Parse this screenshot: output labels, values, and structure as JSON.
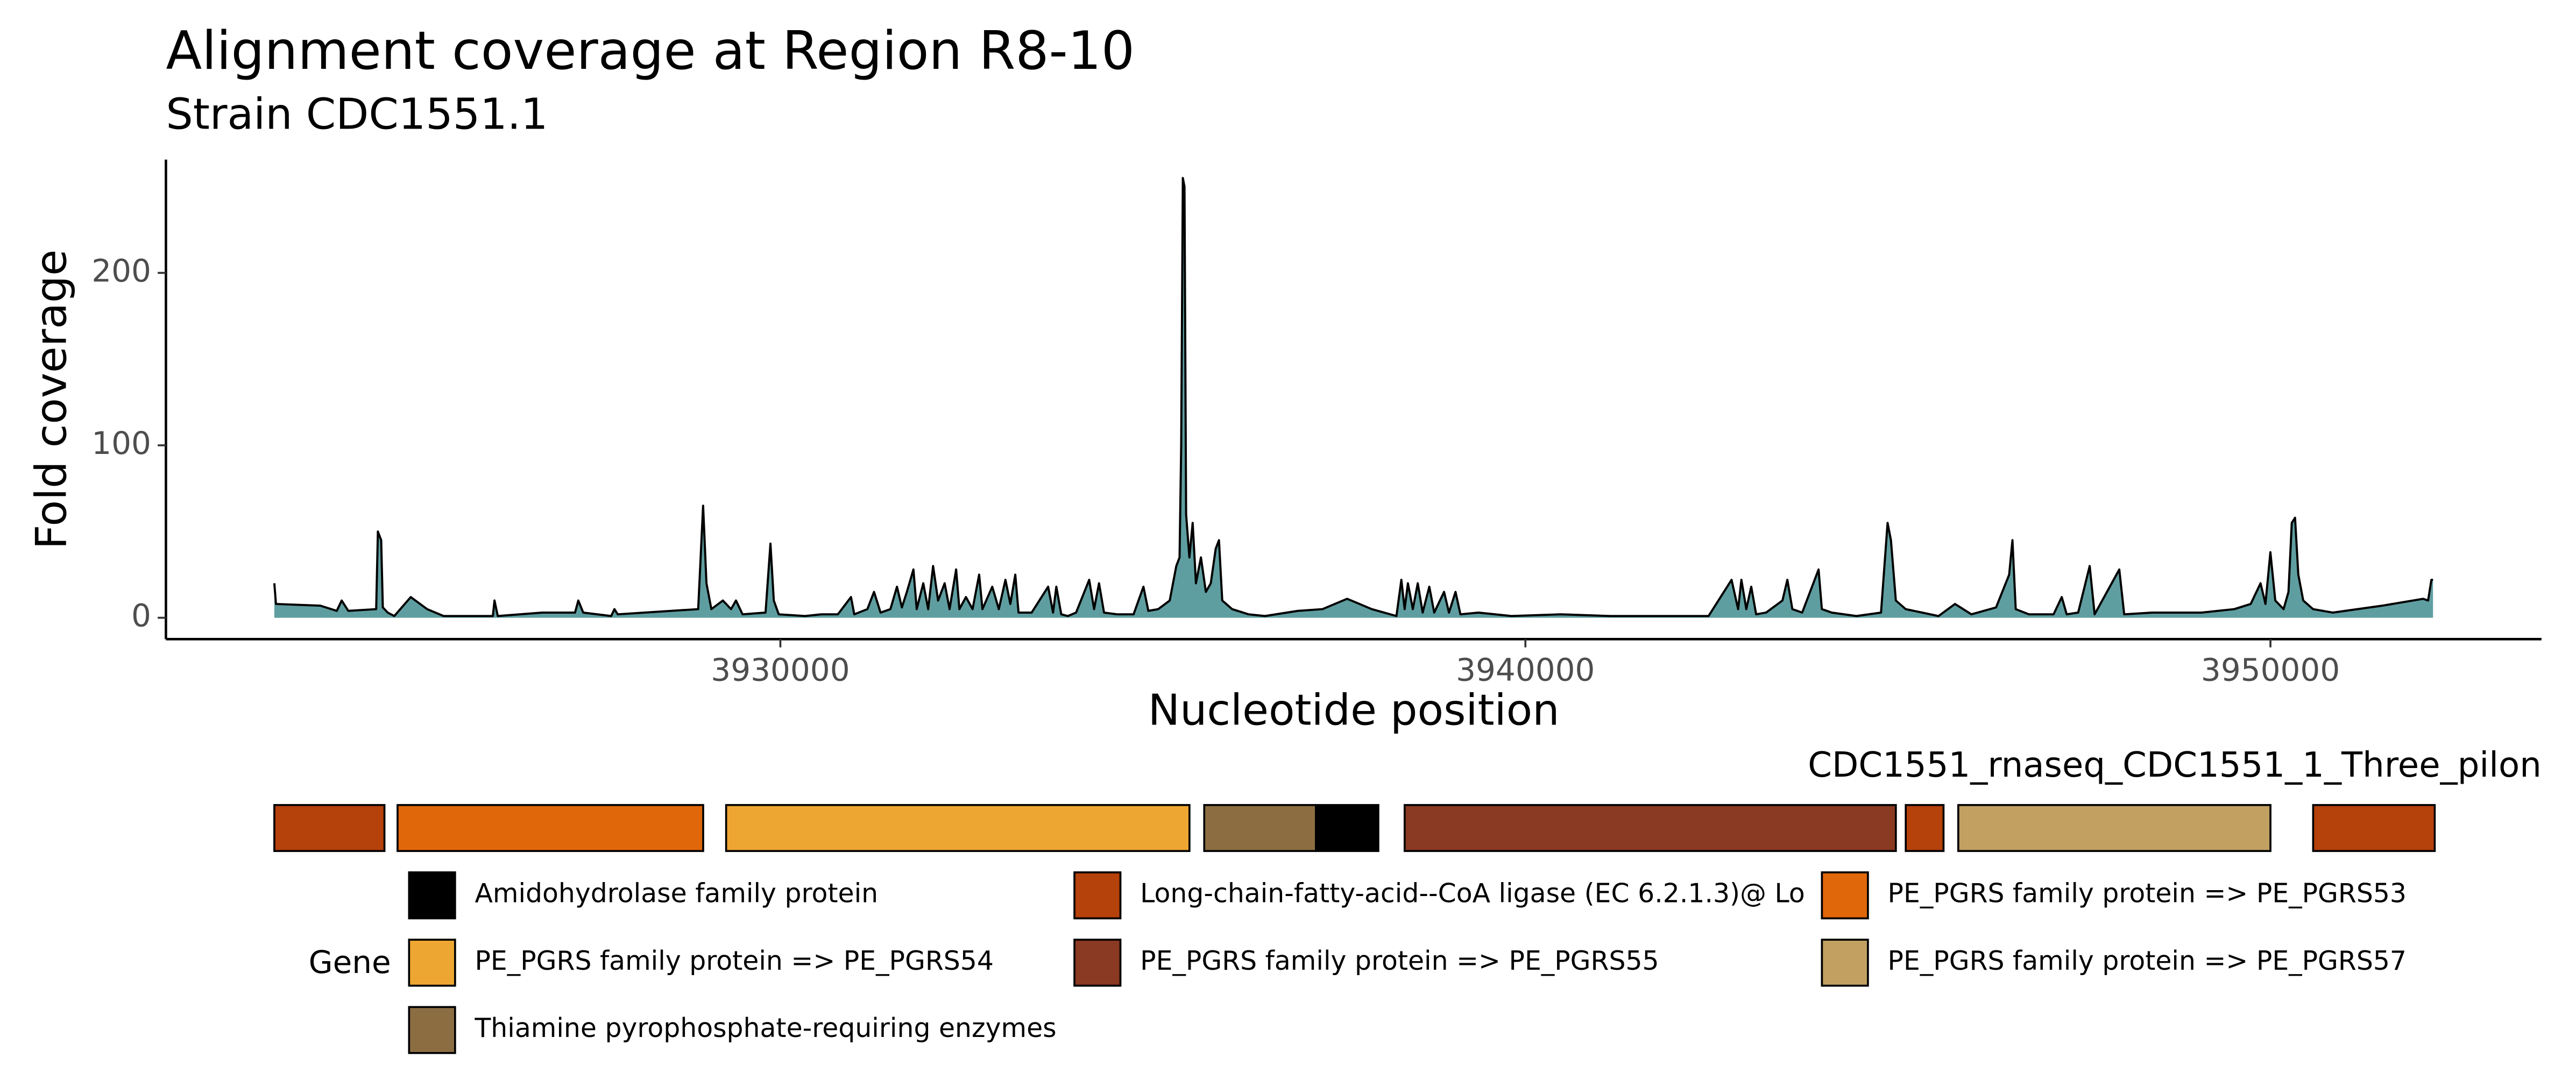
{
  "chart_data": {
    "type": "area",
    "title": "Alignment coverage at Region R8-10",
    "subtitle": "Strain CDC1551.1",
    "x_label": "Nucleotide position",
    "y_label": "Fold coverage",
    "color": "#5f9ea0",
    "line_color": "#000000",
    "grid": false,
    "xlim": [
      3921753,
      3953638
    ],
    "ylim": [
      -12.4,
      265.7
    ],
    "xticks": [
      3930000,
      3940000,
      3950000
    ],
    "yticks": [
      0,
      100,
      200
    ],
    "x": [
      3923208,
      3923230,
      3923826,
      3924046,
      3924112,
      3924201,
      3924575,
      3924598,
      3924642,
      3924664,
      3924730,
      3924818,
      3925039,
      3925259,
      3925480,
      3926141,
      3926163,
      3926207,
      3926803,
      3927244,
      3927288,
      3927354,
      3927729,
      3927773,
      3927817,
      3928897,
      3928963,
      3929008,
      3929074,
      3929228,
      3929338,
      3929404,
      3929493,
      3929801,
      3929867,
      3929912,
      3929978,
      3930331,
      3930551,
      3930772,
      3930948,
      3930992,
      3931168,
      3931257,
      3931345,
      3931477,
      3931565,
      3931631,
      3931698,
      3931786,
      3931830,
      3931918,
      3931984,
      3932050,
      3932117,
      3932205,
      3932271,
      3932359,
      3932403,
      3932491,
      3932580,
      3932668,
      3932712,
      3932844,
      3932932,
      3933021,
      3933087,
      3933153,
      3933197,
      3933373,
      3933594,
      3933660,
      3933704,
      3933770,
      3933859,
      3933969,
      3934145,
      3934211,
      3934277,
      3934344,
      3934520,
      3934741,
      3934873,
      3934939,
      3935071,
      3935226,
      3935314,
      3935358,
      3935380,
      3935402,
      3935424,
      3935446,
      3935490,
      3935534,
      3935578,
      3935645,
      3935711,
      3935777,
      3935843,
      3935887,
      3935931,
      3936064,
      3936284,
      3936505,
      3936946,
      3937276,
      3937607,
      3937938,
      3938269,
      3938335,
      3938379,
      3938423,
      3938489,
      3938555,
      3938621,
      3938710,
      3938776,
      3938908,
      3938974,
      3939062,
      3939128,
      3939371,
      3939812,
      3940474,
      3941135,
      3941576,
      3942458,
      3942767,
      3942855,
      3942899,
      3942965,
      3943031,
      3943097,
      3943230,
      3943450,
      3943516,
      3943583,
      3943715,
      3943935,
      3943979,
      3944112,
      3944443,
      3944773,
      3944861,
      3944906,
      3944972,
      3945104,
      3945325,
      3945545,
      3945766,
      3945986,
      3946317,
      3946493,
      3946537,
      3946581,
      3946758,
      3947089,
      3947199,
      3947265,
      3947419,
      3947574,
      3947640,
      3947971,
      3948037,
      3948412,
      3949073,
      3949514,
      3949735,
      3949867,
      3949933,
      3949999,
      3950065,
      3950176,
      3950242,
      3950286,
      3950330,
      3950374,
      3950440,
      3950572,
      3950837,
      3951499,
      3952050,
      3952116,
      3952160,
      3952182
    ],
    "values": [
      20,
      8,
      7,
      4,
      10,
      4,
      5,
      50,
      45,
      6,
      3,
      1,
      12,
      5,
      1,
      1,
      10,
      1,
      3,
      3,
      10,
      3,
      1,
      5,
      2,
      5,
      65,
      20,
      5,
      10,
      5,
      10,
      2,
      3,
      43,
      10,
      2,
      1,
      2,
      2,
      12,
      2,
      5,
      15,
      3,
      5,
      18,
      6,
      15,
      28,
      5,
      20,
      5,
      30,
      10,
      20,
      5,
      28,
      5,
      12,
      5,
      25,
      5,
      18,
      5,
      22,
      8,
      25,
      3,
      3,
      18,
      3,
      18,
      2,
      1,
      3,
      22,
      5,
      20,
      3,
      2,
      2,
      18,
      4,
      5,
      10,
      30,
      35,
      100,
      255,
      250,
      60,
      35,
      55,
      20,
      35,
      15,
      20,
      40,
      45,
      10,
      5,
      2,
      1,
      4,
      5,
      11,
      5,
      1,
      22,
      5,
      20,
      5,
      20,
      3,
      18,
      3,
      15,
      3,
      15,
      2,
      3,
      1,
      2,
      1,
      1,
      1,
      22,
      5,
      22,
      5,
      18,
      2,
      3,
      10,
      22,
      5,
      3,
      28,
      5,
      3,
      1,
      3,
      55,
      45,
      10,
      5,
      3,
      1,
      8,
      2,
      6,
      25,
      45,
      5,
      2,
      2,
      12,
      2,
      3,
      30,
      2,
      28,
      2,
      3,
      3,
      5,
      8,
      20,
      8,
      38,
      10,
      5,
      15,
      55,
      58,
      25,
      10,
      5,
      3,
      7,
      11,
      10,
      22,
      22
    ],
    "genes": {
      "title": "CDC1551_rnaseq_CDC1551_1_Three_pilon",
      "legend_title": "Gene",
      "names": [
        "Amidohydrolase family protein",
        "Long-chain-fatty-acid--CoA ligase (EC 6.2.1.3)@ Lo",
        "PE_PGRS family protein => PE_PGRS53",
        "PE_PGRS family protein => PE_PGRS54",
        "PE_PGRS family protein => PE_PGRS55",
        "PE_PGRS family protein => PE_PGRS57",
        "Thiamine pyrophosphate-requiring enzymes"
      ],
      "colors": [
        "#000000",
        "#b5410b",
        "#e0670a",
        "#eea632",
        "#8a3922",
        "#c1a062",
        "#8c6d42"
      ],
      "features": [
        {
          "start": 3923208,
          "end": 3924686,
          "gene": 1
        },
        {
          "start": 3924862,
          "end": 3928964,
          "gene": 2
        },
        {
          "start": 3929272,
          "end": 3935491,
          "gene": 3
        },
        {
          "start": 3935689,
          "end": 3937189,
          "gene": 6
        },
        {
          "start": 3937189,
          "end": 3938026,
          "gene": 0
        },
        {
          "start": 3938379,
          "end": 3944972,
          "gene": 4
        },
        {
          "start": 3945105,
          "end": 3945612,
          "gene": 1
        },
        {
          "start": 3945810,
          "end": 3950000,
          "gene": 5
        },
        {
          "start": 3950573,
          "end": 3952205,
          "gene": 1
        }
      ]
    }
  }
}
